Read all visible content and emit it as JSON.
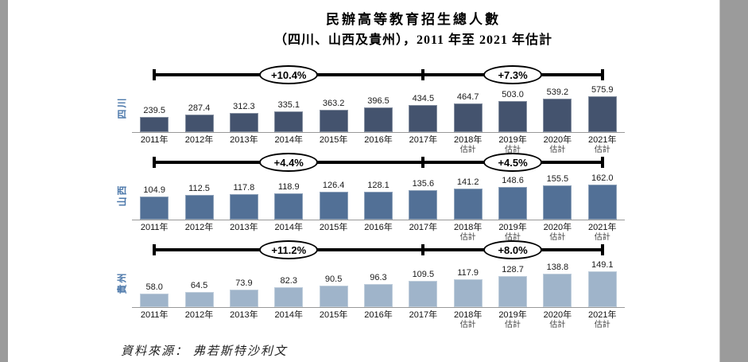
{
  "page": {
    "title_line1": "民辦高等教育招生總人數",
    "title_line2": "（四川、山西及貴州），2011 年至 2021 年估計",
    "source_label": "資料來源：",
    "source_value": "弗若斯特沙利文"
  },
  "chart_data": [
    {
      "type": "bar",
      "region": "四川",
      "categories": [
        "2011年",
        "2012年",
        "2013年",
        "2014年",
        "2015年",
        "2016年",
        "2017年",
        "2018年",
        "2019年",
        "2020年",
        "2021年"
      ],
      "estimate_suffix": "估計",
      "estimate_from_index": 7,
      "values": [
        239.5,
        287.4,
        312.3,
        335.1,
        363.2,
        396.5,
        434.5,
        464.7,
        503.0,
        539.2,
        575.9
      ],
      "value_labels": [
        "239.5",
        "287.4",
        "312.3",
        "335.1",
        "363.2",
        "396.5",
        "434.5",
        "464.7",
        "503.0",
        "539.2",
        "575.9"
      ],
      "brackets": [
        {
          "label": "+10.4%",
          "from": 0,
          "to": 6
        },
        {
          "label": "+7.3%",
          "from": 6,
          "to": 10
        }
      ],
      "bar_color": "#44536e",
      "ylim": [
        0,
        620
      ],
      "legend_position": "none",
      "grid": false
    },
    {
      "type": "bar",
      "region": "山西",
      "categories": [
        "2011年",
        "2012年",
        "2013年",
        "2014年",
        "2015年",
        "2016年",
        "2017年",
        "2018年",
        "2019年",
        "2020年",
        "2021年"
      ],
      "estimate_suffix": "估計",
      "estimate_from_index": 7,
      "values": [
        104.9,
        112.5,
        117.8,
        118.9,
        126.4,
        128.1,
        135.6,
        141.2,
        148.6,
        155.5,
        162.0
      ],
      "value_labels": [
        "104.9",
        "112.5",
        "117.8",
        "118.9",
        "126.4",
        "128.1",
        "135.6",
        "141.2",
        "148.6",
        "155.5",
        "162.0"
      ],
      "brackets": [
        {
          "label": "+4.4%",
          "from": 0,
          "to": 6
        },
        {
          "label": "+4.5%",
          "from": 6,
          "to": 10
        }
      ],
      "bar_color": "#527096",
      "ylim": [
        0,
        175
      ],
      "legend_position": "none",
      "grid": false
    },
    {
      "type": "bar",
      "region": "貴州",
      "categories": [
        "2011年",
        "2012年",
        "2013年",
        "2014年",
        "2015年",
        "2016年",
        "2017年",
        "2018年",
        "2019年",
        "2020年",
        "2021年"
      ],
      "estimate_suffix": "估計",
      "estimate_from_index": 7,
      "values": [
        58.0,
        64.5,
        73.9,
        82.3,
        90.5,
        96.3,
        109.5,
        117.9,
        128.7,
        138.8,
        149.1
      ],
      "value_labels": [
        "58.0",
        "64.5",
        "73.9",
        "82.3",
        "90.5",
        "96.3",
        "109.5",
        "117.9",
        "128.7",
        "138.8",
        "149.1"
      ],
      "brackets": [
        {
          "label": "+11.2%",
          "from": 0,
          "to": 6
        },
        {
          "label": "+8.0%",
          "from": 6,
          "to": 10
        }
      ],
      "bar_color": "#9fb4ca",
      "ylim": [
        0,
        160
      ],
      "legend_position": "none",
      "grid": false
    }
  ]
}
